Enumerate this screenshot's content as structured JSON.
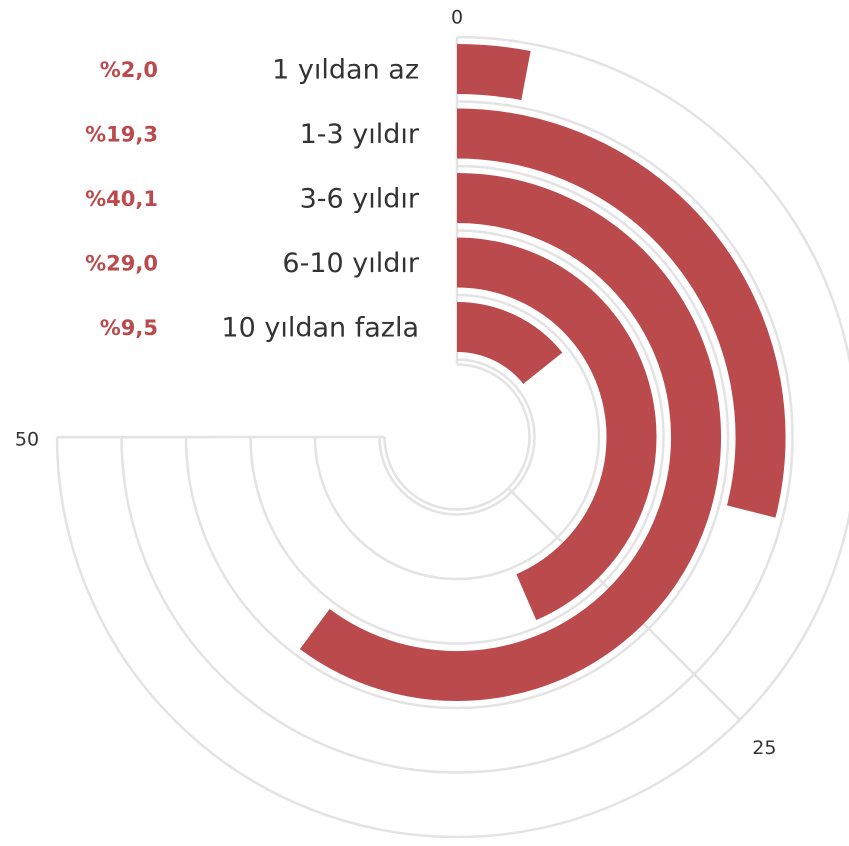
{
  "chart_data": {
    "type": "radial-bar",
    "categories": [
      "1 yıldan az",
      "1-3 yıldır",
      "3-6 yıldır",
      "6-10 yıldır",
      "10 yıldan fazla"
    ],
    "values": [
      2.0,
      19.3,
      40.1,
      29.0,
      9.5
    ],
    "value_labels": [
      "%2,0",
      "%19,3",
      "%40,1",
      "%29,0",
      "%9,5"
    ],
    "scale_max": 66.67,
    "ticks": [
      {
        "value": 0,
        "label": "0"
      },
      {
        "value": 25,
        "label": "25"
      },
      {
        "value": 50,
        "label": "50"
      }
    ],
    "grid": true,
    "colors": {
      "bar": "#bb4a4d",
      "value_label": "#bb4a4d",
      "category_label": "#333333",
      "grid": "#e3e3e3"
    }
  }
}
